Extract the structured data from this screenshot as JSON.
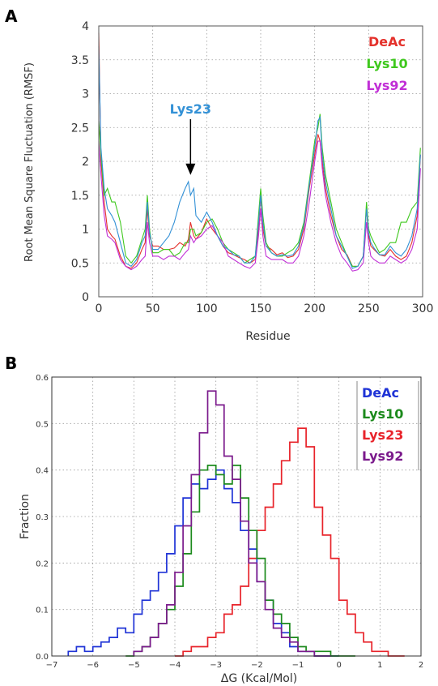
{
  "colors": {
    "deac_a": "#e4312b",
    "lys10_a": "#3fc81e",
    "lys92_a": "#c12fd6",
    "lys23_a": "#3391d6",
    "deac_b": "#1f33d6",
    "lys10_b": "#1c8a1c",
    "lys23_b": "#e8232a",
    "lys92_b": "#7b1a8c",
    "grid": "#9a9a9a"
  },
  "panel_a": {
    "label": "A",
    "annotation": "Lys23",
    "chart_data": {
      "type": "line",
      "xlabel": "Residue",
      "ylabel": "Root Mean Square Fluctuation (RMSF)",
      "xlim": [
        0,
        300
      ],
      "ylim": [
        0,
        4
      ],
      "x_ticks": [
        "0",
        "50",
        "100",
        "150",
        "200",
        "250",
        "300"
      ],
      "y_ticks": [
        "0",
        "0.5",
        "1",
        "1.5",
        "2",
        "2.5",
        "3",
        "3.5",
        "4"
      ],
      "grid": true,
      "legend_position": "top-right",
      "legend": [
        "DeAc",
        "Lys10",
        "Lys92"
      ],
      "annotation": {
        "text": "Lys23",
        "arrow_to": [
          85,
          1.8
        ]
      },
      "x": [
        0,
        2,
        5,
        8,
        12,
        15,
        20,
        25,
        30,
        35,
        40,
        43,
        45,
        47,
        50,
        55,
        60,
        65,
        70,
        75,
        80,
        83,
        85,
        88,
        90,
        95,
        100,
        105,
        110,
        115,
        120,
        125,
        130,
        135,
        140,
        145,
        148,
        150,
        152,
        155,
        160,
        165,
        170,
        175,
        180,
        185,
        190,
        195,
        200,
        203,
        205,
        207,
        210,
        215,
        220,
        225,
        230,
        235,
        240,
        245,
        248,
        250,
        252,
        255,
        260,
        265,
        270,
        275,
        280,
        285,
        290,
        295,
        298
      ],
      "series": [
        {
          "name": "DeAc",
          "values": [
            3.9,
            2.0,
            1.4,
            1.0,
            0.9,
            0.85,
            0.6,
            0.45,
            0.42,
            0.5,
            0.7,
            0.8,
            1.3,
            0.9,
            0.75,
            0.75,
            0.7,
            0.7,
            0.72,
            0.8,
            0.75,
            0.85,
            1.1,
            0.9,
            0.85,
            0.95,
            1.15,
            1.0,
            0.9,
            0.75,
            0.65,
            0.62,
            0.58,
            0.55,
            0.5,
            0.55,
            1.0,
            1.5,
            1.0,
            0.75,
            0.7,
            0.62,
            0.65,
            0.58,
            0.6,
            0.7,
            1.0,
            1.6,
            2.1,
            2.4,
            2.3,
            2.0,
            1.6,
            1.2,
            0.9,
            0.7,
            0.62,
            0.45,
            0.45,
            0.6,
            1.3,
            0.9,
            0.75,
            0.7,
            0.62,
            0.6,
            0.7,
            0.6,
            0.55,
            0.6,
            0.8,
            1.2,
            2.1
          ]
        },
        {
          "name": "Lys10",
          "values": [
            2.6,
            2.1,
            1.5,
            1.6,
            1.4,
            1.4,
            1.1,
            0.6,
            0.5,
            0.6,
            0.85,
            1.0,
            1.5,
            1.0,
            0.65,
            0.65,
            0.7,
            0.7,
            0.6,
            0.65,
            0.8,
            0.8,
            1.0,
            1.0,
            0.9,
            0.95,
            1.1,
            1.15,
            1.0,
            0.8,
            0.7,
            0.65,
            0.6,
            0.5,
            0.55,
            0.6,
            1.2,
            1.6,
            1.2,
            0.8,
            0.65,
            0.6,
            0.6,
            0.65,
            0.7,
            0.8,
            1.1,
            1.7,
            2.3,
            2.5,
            2.7,
            2.2,
            1.8,
            1.4,
            1.0,
            0.8,
            0.6,
            0.45,
            0.45,
            0.6,
            1.4,
            1.0,
            0.9,
            0.8,
            0.65,
            0.7,
            0.8,
            0.8,
            1.1,
            1.1,
            1.3,
            1.4,
            2.2
          ]
        },
        {
          "name": "Lys92",
          "values": [
            2.3,
            1.8,
            1.2,
            0.9,
            0.85,
            0.8,
            0.55,
            0.45,
            0.4,
            0.45,
            0.55,
            0.6,
            1.1,
            0.8,
            0.6,
            0.6,
            0.55,
            0.6,
            0.6,
            0.55,
            0.65,
            0.7,
            0.9,
            0.8,
            0.85,
            0.9,
            1.0,
            1.05,
            0.9,
            0.8,
            0.6,
            0.55,
            0.5,
            0.45,
            0.42,
            0.5,
            0.9,
            1.3,
            0.9,
            0.6,
            0.55,
            0.55,
            0.55,
            0.5,
            0.5,
            0.6,
            0.9,
            1.4,
            2.0,
            2.3,
            2.3,
            1.9,
            1.5,
            1.1,
            0.8,
            0.6,
            0.5,
            0.38,
            0.4,
            0.5,
            1.1,
            0.8,
            0.6,
            0.55,
            0.5,
            0.5,
            0.6,
            0.55,
            0.5,
            0.55,
            0.7,
            1.0,
            1.9
          ]
        },
        {
          "name": "Lys23",
          "values": [
            3.7,
            2.2,
            1.6,
            1.3,
            1.2,
            1.1,
            0.8,
            0.5,
            0.45,
            0.55,
            0.8,
            0.9,
            1.4,
            0.95,
            0.7,
            0.7,
            0.8,
            0.9,
            1.1,
            1.4,
            1.6,
            1.7,
            1.5,
            1.6,
            1.2,
            1.1,
            1.25,
            1.1,
            0.9,
            0.75,
            0.7,
            0.62,
            0.6,
            0.5,
            0.5,
            0.6,
            1.1,
            1.5,
            1.1,
            0.75,
            0.65,
            0.6,
            0.62,
            0.6,
            0.62,
            0.75,
            1.05,
            1.65,
            2.2,
            2.6,
            2.65,
            2.1,
            1.7,
            1.3,
            0.9,
            0.75,
            0.6,
            0.42,
            0.45,
            0.6,
            1.3,
            0.95,
            0.8,
            0.72,
            0.62,
            0.62,
            0.75,
            0.65,
            0.6,
            0.7,
            0.9,
            1.3,
            2.1
          ]
        }
      ]
    }
  },
  "panel_b": {
    "label": "B",
    "chart_data": {
      "type": "step-histogram",
      "xlabel": "ΔG (Kcal/Mol)",
      "ylabel": "Fraction",
      "xlim": [
        -7,
        2
      ],
      "ylim": [
        0,
        0.6
      ],
      "x_ticks": [
        "−7",
        "−6",
        "−5",
        "−4",
        "−3",
        "−2",
        "−1",
        "0",
        "1",
        "2"
      ],
      "y_ticks": [
        "0.0",
        "0.1",
        "0.2",
        "0.3",
        "0.4",
        "0.5",
        "0.6"
      ],
      "grid": true,
      "legend_position": "top-right",
      "legend": [
        "DeAc",
        "Lys10",
        "Lys23",
        "Lys92"
      ],
      "series": [
        {
          "name": "DeAc",
          "x": [
            -6.6,
            -6.4,
            -6.2,
            -6.0,
            -5.8,
            -5.6,
            -5.4,
            -5.2,
            -5.0,
            -4.8,
            -4.6,
            -4.4,
            -4.2,
            -4.0,
            -3.8,
            -3.6,
            -3.4,
            -3.2,
            -3.0,
            -2.8,
            -2.6,
            -2.4,
            -2.2,
            -2.0,
            -1.8,
            -1.6,
            -1.4,
            -1.2,
            -1.0,
            -0.8,
            -0.6,
            -0.4,
            -0.2
          ],
          "values": [
            0.01,
            0.02,
            0.01,
            0.02,
            0.03,
            0.04,
            0.06,
            0.05,
            0.09,
            0.12,
            0.14,
            0.18,
            0.22,
            0.28,
            0.34,
            0.37,
            0.36,
            0.38,
            0.4,
            0.36,
            0.33,
            0.27,
            0.23,
            0.16,
            0.12,
            0.07,
            0.05,
            0.02,
            0.01,
            0.01,
            0.0,
            0.0,
            0.0
          ]
        },
        {
          "name": "Lys10",
          "x": [
            -5.2,
            -5.0,
            -4.8,
            -4.6,
            -4.4,
            -4.2,
            -4.0,
            -3.8,
            -3.6,
            -3.4,
            -3.2,
            -3.0,
            -2.8,
            -2.6,
            -2.4,
            -2.2,
            -2.0,
            -1.8,
            -1.6,
            -1.4,
            -1.2,
            -1.0,
            -0.8,
            -0.6,
            -0.4,
            -0.2,
            0.0,
            0.2
          ],
          "values": [
            0.0,
            0.01,
            0.02,
            0.04,
            0.07,
            0.1,
            0.15,
            0.22,
            0.31,
            0.4,
            0.41,
            0.39,
            0.37,
            0.41,
            0.34,
            0.27,
            0.21,
            0.12,
            0.09,
            0.07,
            0.04,
            0.02,
            0.01,
            0.01,
            0.01,
            0.0,
            0.0,
            0.0
          ]
        },
        {
          "name": "Lys23",
          "x": [
            -4.0,
            -3.8,
            -3.6,
            -3.4,
            -3.2,
            -3.0,
            -2.8,
            -2.6,
            -2.4,
            -2.2,
            -2.0,
            -1.8,
            -1.6,
            -1.4,
            -1.2,
            -1.0,
            -0.8,
            -0.6,
            -0.4,
            -0.2,
            0.0,
            0.2,
            0.4,
            0.6,
            0.8,
            1.0,
            1.2,
            1.4
          ],
          "values": [
            0.0,
            0.01,
            0.02,
            0.02,
            0.04,
            0.05,
            0.09,
            0.11,
            0.15,
            0.21,
            0.27,
            0.32,
            0.37,
            0.42,
            0.46,
            0.49,
            0.45,
            0.32,
            0.26,
            0.21,
            0.12,
            0.09,
            0.05,
            0.03,
            0.01,
            0.01,
            0.0,
            0.0
          ]
        },
        {
          "name": "Lys92",
          "x": [
            -5.0,
            -4.8,
            -4.6,
            -4.4,
            -4.2,
            -4.0,
            -3.8,
            -3.6,
            -3.4,
            -3.2,
            -3.0,
            -2.8,
            -2.6,
            -2.4,
            -2.2,
            -2.0,
            -1.8,
            -1.6,
            -1.4,
            -1.2,
            -1.0,
            -0.8,
            -0.6,
            -0.4
          ],
          "values": [
            0.01,
            0.02,
            0.04,
            0.07,
            0.11,
            0.18,
            0.28,
            0.39,
            0.48,
            0.57,
            0.54,
            0.43,
            0.38,
            0.29,
            0.2,
            0.16,
            0.1,
            0.06,
            0.04,
            0.03,
            0.01,
            0.01,
            0.0,
            0.0
          ]
        }
      ]
    }
  }
}
